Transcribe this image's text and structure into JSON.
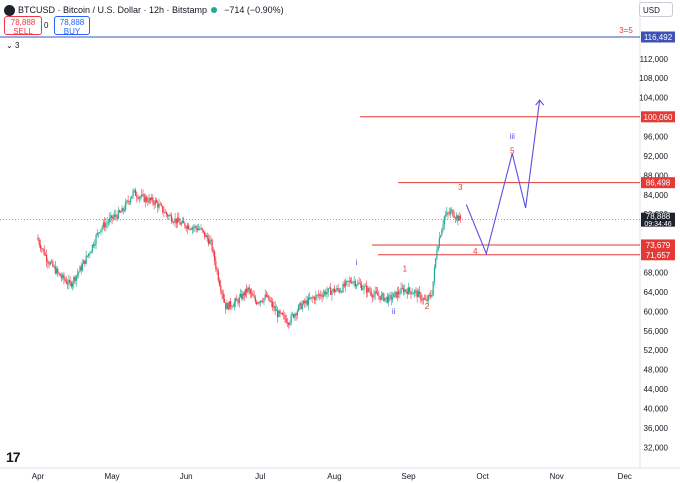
{
  "header": {
    "symbol_line": "BTCUSD · Bitcoin / U.S. Dollar · 12h · Bitstamp",
    "change": "−714 (−0.90%)",
    "sell_price": "78,888",
    "sell_label": "SELL",
    "spread": "0",
    "buy_price": "78,888",
    "buy_label": "BUY",
    "indicator_count": "3",
    "currency": "USD"
  },
  "colors": {
    "up": "#22ab94",
    "down": "#f23645",
    "level_red": "#e53935",
    "projection": "#5b4fe0",
    "top_level": "#3f51b5"
  },
  "chart_data": {
    "type": "candlestick",
    "price_axis": {
      "ticks": [
        112000,
        108000,
        104000,
        96000,
        92000,
        88000,
        84000,
        80000,
        68000,
        64000,
        60000,
        56000,
        52000,
        48000,
        44000,
        40000,
        36000,
        32000
      ],
      "tick_labels": [
        "112,000",
        "108,000",
        "104,000",
        "96,000",
        "92,000",
        "88,000",
        "84,000",
        "80,000",
        "68,000",
        "64,000",
        "60,000",
        "56,000",
        "52,000",
        "48,000",
        "44,000",
        "40,000",
        "36,000",
        "32,000"
      ],
      "range": [
        30000,
        120000
      ]
    },
    "time_axis": [
      "Apr",
      "May",
      "Jun",
      "Jul",
      "Aug",
      "Sep",
      "Oct",
      "Nov",
      "Dec"
    ],
    "current_price": {
      "price": 78888,
      "label": "78,888",
      "countdown": "09:34:46"
    },
    "levels": [
      {
        "price": 116492,
        "label": "116,492",
        "text": "3=5",
        "color": "#3f51b5"
      },
      {
        "price": 100060,
        "label": "100,060",
        "color": "#e53935"
      },
      {
        "price": 86498,
        "label": "86,498",
        "color": "#e53935"
      },
      {
        "price": 73679,
        "label": "73,679",
        "color": "#e53935"
      },
      {
        "price": 71657,
        "label": "71,657",
        "color": "#e53935"
      }
    ],
    "wave_labels": [
      {
        "text": "1",
        "color": "#e53935",
        "month": 4.95,
        "price": 68200
      },
      {
        "text": "2",
        "color": "#e53935",
        "month": 5.25,
        "price": 60500
      },
      {
        "text": "3",
        "color": "#e53935",
        "month": 5.7,
        "price": 85000
      },
      {
        "text": "4",
        "color": "#e53935",
        "month": 5.9,
        "price": 71800
      },
      {
        "text": "5",
        "color": "#e53935",
        "month": 6.4,
        "price": 92500
      },
      {
        "text": "i",
        "color": "#5b4fe0",
        "month": 4.3,
        "price": 69500
      },
      {
        "text": "ii",
        "color": "#5b4fe0",
        "month": 4.8,
        "price": 59500
      },
      {
        "text": "iii",
        "color": "#5b4fe0",
        "month": 6.4,
        "price": 95500
      },
      {
        "text": "iv",
        "color": "#5b4fe0",
        "month": 9.05,
        "price": 78000
      }
    ],
    "price_path": [
      [
        0,
        75200
      ],
      [
        0.15,
        70500
      ],
      [
        0.3,
        67500
      ],
      [
        0.45,
        65500
      ],
      [
        0.6,
        69000
      ],
      [
        0.72,
        72500
      ],
      [
        0.85,
        77000
      ],
      [
        1.0,
        79000
      ],
      [
        1.15,
        80500
      ],
      [
        1.3,
        84500
      ],
      [
        1.45,
        83200
      ],
      [
        1.6,
        82500
      ],
      [
        1.75,
        80000
      ],
      [
        1.95,
        78000
      ],
      [
        2.2,
        77000
      ],
      [
        2.35,
        74000
      ],
      [
        2.45,
        67000
      ],
      [
        2.55,
        61000
      ],
      [
        2.7,
        62000
      ],
      [
        2.85,
        64500
      ],
      [
        2.95,
        62000
      ],
      [
        3.1,
        63000
      ],
      [
        3.25,
        59500
      ],
      [
        3.4,
        58000
      ],
      [
        3.55,
        61000
      ],
      [
        3.7,
        62500
      ],
      [
        3.9,
        64000
      ],
      [
        4.1,
        64500
      ],
      [
        4.25,
        66500
      ],
      [
        4.4,
        65000
      ],
      [
        4.55,
        63500
      ],
      [
        4.75,
        62500
      ],
      [
        4.95,
        64500
      ],
      [
        5.1,
        64000
      ],
      [
        5.25,
        62000
      ],
      [
        5.33,
        63500
      ],
      [
        5.4,
        73000
      ],
      [
        5.5,
        79500
      ],
      [
        5.6,
        80500
      ],
      [
        5.7,
        79000
      ]
    ],
    "projection": [
      {
        "month": 5.78,
        "price": 82000
      },
      {
        "month": 6.05,
        "price": 71900
      },
      {
        "month": 6.4,
        "price": 92500
      },
      {
        "month": 6.58,
        "price": 81300
      },
      {
        "month": 6.77,
        "price": 103500
      }
    ]
  }
}
